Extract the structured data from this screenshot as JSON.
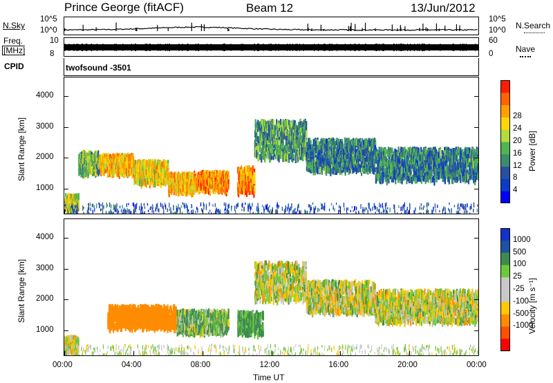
{
  "header": {
    "station": "Prince George (fitACF)",
    "beam": "Beam 12",
    "date": "13/Jun/2012"
  },
  "nsky": {
    "label": "N.Sky",
    "left_ticks": [
      "10^5",
      "10^0"
    ],
    "right_ticks": [
      "10^5",
      "10^0"
    ],
    "right_label": "N.Search"
  },
  "freq": {
    "label_line1": "Freq.",
    "label_line2": "[MHz]",
    "left_ticks": [
      "10",
      "8"
    ],
    "right_ticks": [
      "60",
      "0"
    ],
    "right_label": "Nave"
  },
  "cpid": {
    "label": "CPID",
    "value": "twofsound -3501"
  },
  "chart_data": [
    {
      "type": "heatmap",
      "variable": "Power",
      "ylabel": "Slant Range [km]",
      "ylim": [
        200,
        4600
      ],
      "yticks": [
        "1000",
        "2000",
        "3000",
        "4000"
      ],
      "colorbar": {
        "label": "Power [dB]",
        "ticks": [
          "4",
          "8",
          "12",
          "16",
          "20",
          "24",
          "28"
        ],
        "range": [
          0,
          31
        ],
        "colors": [
          "#0000ff",
          "#0a3cc8",
          "#2850a0",
          "#3c8c6e",
          "#50b450",
          "#b4dc3c",
          "#ffd700",
          "#ffa000",
          "#ff6400",
          "#ff1e00"
        ]
      },
      "bands": [
        {
          "t0": 0.0,
          "t1": 0.8,
          "r0": 350,
          "r1": 800,
          "power": 18
        },
        {
          "t0": 0.8,
          "t1": 2.0,
          "r0": 1500,
          "r1": 2200,
          "power": 14
        },
        {
          "t0": 2.0,
          "t1": 4.0,
          "r0": 1500,
          "r1": 2100,
          "power": 22
        },
        {
          "t0": 4.0,
          "t1": 6.0,
          "r0": 1200,
          "r1": 1900,
          "power": 20
        },
        {
          "t0": 6.0,
          "t1": 7.5,
          "r0": 900,
          "r1": 1500,
          "power": 22
        },
        {
          "t0": 7.5,
          "t1": 9.5,
          "r0": 950,
          "r1": 1550,
          "power": 24
        },
        {
          "t0": 10.0,
          "t1": 11.0,
          "r0": 900,
          "r1": 1700,
          "power": 24
        },
        {
          "t0": 11.0,
          "t1": 14.0,
          "r0": 2000,
          "r1": 3200,
          "power": 12
        },
        {
          "t0": 14.0,
          "t1": 18.0,
          "r0": 1600,
          "r1": 2600,
          "power": 10
        },
        {
          "t0": 18.0,
          "t1": 24.0,
          "r0": 1300,
          "r1": 2300,
          "power": 10
        }
      ]
    },
    {
      "type": "heatmap",
      "variable": "Velocity",
      "ylabel": "Slant Range [km]",
      "ylim": [
        200,
        4600
      ],
      "yticks": [
        "1000",
        "2000",
        "3000",
        "4000"
      ],
      "colorbar": {
        "label": "Velocity [m s⁻¹]",
        "ticks": [
          "1000",
          "500",
          "100",
          "25",
          "-25",
          "-100",
          "-500",
          "-1000"
        ],
        "colors": [
          "#1432c8",
          "#2050a0",
          "#3c8c50",
          "#6ec83c",
          "#c8c8c8",
          "#c8c8c8",
          "#ffc800",
          "#ff8c00",
          "#ff5000",
          "#ff0000"
        ]
      },
      "xlabel": "Time UT",
      "xticks": [
        "00:00",
        "04:00",
        "08:00",
        "12:00",
        "16:00",
        "20:00",
        "00:00"
      ],
      "xlim": [
        0,
        24
      ],
      "bands": [
        {
          "t0": 0.0,
          "t1": 0.8,
          "r0": 350,
          "r1": 800,
          "velocity": 0
        },
        {
          "t0": 2.5,
          "t1": 6.5,
          "r0": 1100,
          "r1": 1800,
          "velocity": -300
        },
        {
          "t0": 6.5,
          "t1": 9.5,
          "r0": 950,
          "r1": 1650,
          "velocity": 80
        },
        {
          "t0": 10.0,
          "t1": 11.5,
          "r0": 900,
          "r1": 1600,
          "velocity": 150
        },
        {
          "t0": 11.0,
          "t1": 14.0,
          "r0": 2000,
          "r1": 3200,
          "velocity": 0
        },
        {
          "t0": 14.0,
          "t1": 18.0,
          "r0": 1600,
          "r1": 2600,
          "velocity": 0
        },
        {
          "t0": 18.0,
          "t1": 24.0,
          "r0": 1300,
          "r1": 2300,
          "velocity": 0
        }
      ]
    }
  ]
}
